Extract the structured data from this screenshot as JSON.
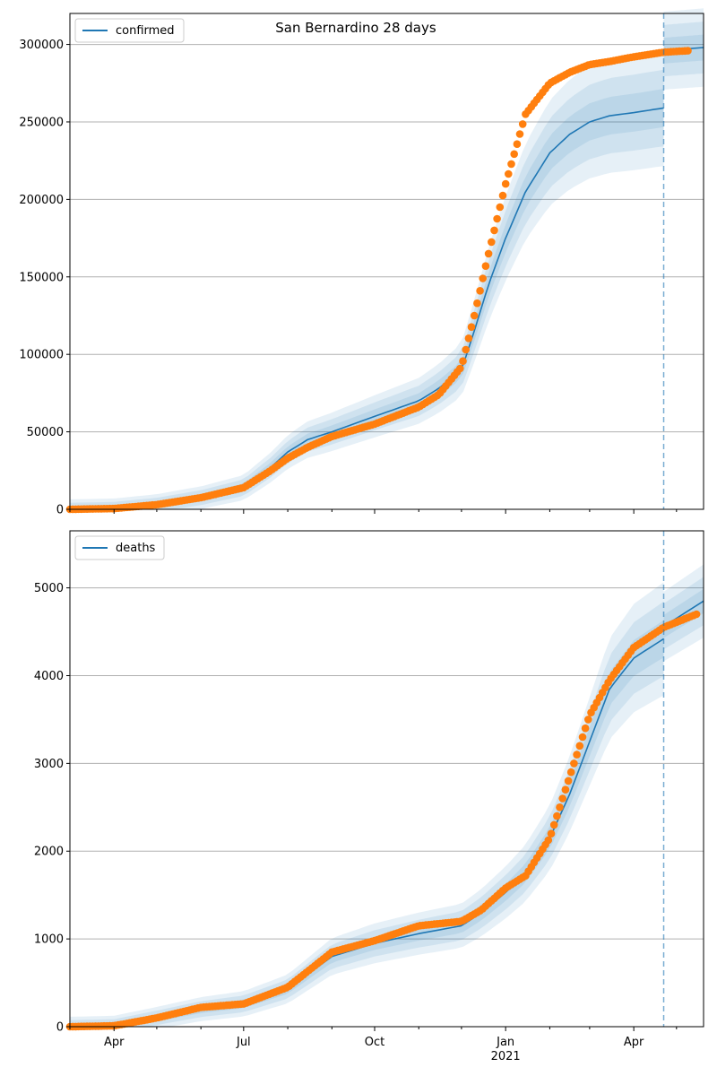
{
  "colors": {
    "model": "#1f77b4",
    "observed": "#ff7f0e",
    "band": "#1f77b4",
    "grid": "#b0b0b0",
    "forecast_line": "#1f77b4"
  },
  "chart_data": [
    {
      "type": "line",
      "title": "San Bernardino 28 days",
      "xlabel": "",
      "ylabel": "",
      "x_range": [
        "2020-03-01",
        "2021-05-20"
      ],
      "forecast_start": "2021-04-22",
      "ylim": [
        0,
        320000
      ],
      "yticks": [
        0,
        50000,
        100000,
        150000,
        200000,
        250000,
        300000
      ],
      "ytick_labels": [
        "0",
        "50000",
        "100000",
        "150000",
        "200000",
        "250000",
        "300000"
      ],
      "grid": "horizontal",
      "legend": {
        "position": "top-left",
        "entries": [
          "confirmed"
        ]
      },
      "series": [
        {
          "name": "confirmed",
          "kind": "model-median",
          "points": [
            [
              "2020-03-01",
              0
            ],
            [
              "2020-04-01",
              500
            ],
            [
              "2020-05-01",
              3000
            ],
            [
              "2020-06-01",
              7500
            ],
            [
              "2020-07-01",
              14000
            ],
            [
              "2020-07-20",
              27000
            ],
            [
              "2020-08-01",
              37000
            ],
            [
              "2020-08-15",
              45000
            ],
            [
              "2020-09-01",
              50000
            ],
            [
              "2020-10-01",
              60000
            ],
            [
              "2020-11-01",
              70000
            ],
            [
              "2020-11-15",
              78000
            ],
            [
              "2020-12-01",
              90000
            ],
            [
              "2020-12-10",
              115000
            ],
            [
              "2020-12-20",
              145000
            ],
            [
              "2021-01-01",
              175000
            ],
            [
              "2021-01-15",
              205000
            ],
            [
              "2021-02-01",
              230000
            ],
            [
              "2021-02-15",
              242000
            ],
            [
              "2021-03-01",
              250000
            ],
            [
              "2021-03-15",
              254000
            ],
            [
              "2021-04-01",
              256000
            ],
            [
              "2021-04-22",
              259000
            ]
          ]
        },
        {
          "name": "",
          "kind": "observed",
          "points": [
            [
              "2020-03-01",
              0
            ],
            [
              "2020-04-01",
              500
            ],
            [
              "2020-05-01",
              3000
            ],
            [
              "2020-06-01",
              7500
            ],
            [
              "2020-07-01",
              14000
            ],
            [
              "2020-07-20",
              25000
            ],
            [
              "2020-08-01",
              33000
            ],
            [
              "2020-08-15",
              40000
            ],
            [
              "2020-09-01",
              47000
            ],
            [
              "2020-10-01",
              55000
            ],
            [
              "2020-11-01",
              66000
            ],
            [
              "2020-11-15",
              74000
            ],
            [
              "2020-12-01",
              92000
            ],
            [
              "2020-12-10",
              125000
            ],
            [
              "2020-12-20",
              165000
            ],
            [
              "2021-01-01",
              210000
            ],
            [
              "2021-01-15",
              255000
            ],
            [
              "2021-02-01",
              275000
            ],
            [
              "2021-02-15",
              282000
            ],
            [
              "2021-03-01",
              287000
            ],
            [
              "2021-03-15",
              289000
            ],
            [
              "2021-04-01",
              292000
            ],
            [
              "2021-04-22",
              295000
            ],
            [
              "2021-05-10",
              296000
            ]
          ]
        },
        {
          "name": "",
          "kind": "forecast-median",
          "points": [
            [
              "2021-04-22",
              296000
            ],
            [
              "2021-05-20",
              298000
            ]
          ]
        }
      ]
    },
    {
      "type": "line",
      "title": "",
      "xlabel": "",
      "ylabel": "",
      "x_range": [
        "2020-03-01",
        "2021-05-20"
      ],
      "forecast_start": "2021-04-22",
      "ylim": [
        0,
        5650
      ],
      "yticks": [
        0,
        1000,
        2000,
        3000,
        4000,
        5000
      ],
      "ytick_labels": [
        "0",
        "1000",
        "2000",
        "3000",
        "4000",
        "5000"
      ],
      "xticks": [
        {
          "date": "2020-04-01",
          "label": "Apr",
          "sublabel": ""
        },
        {
          "date": "2020-07-01",
          "label": "Jul",
          "sublabel": ""
        },
        {
          "date": "2020-10-01",
          "label": "Oct",
          "sublabel": ""
        },
        {
          "date": "2021-01-01",
          "label": "Jan",
          "sublabel": "2021"
        },
        {
          "date": "2021-04-01",
          "label": "Apr",
          "sublabel": ""
        }
      ],
      "grid": "horizontal",
      "legend": {
        "position": "top-left",
        "entries": [
          "deaths"
        ]
      },
      "series": [
        {
          "name": "deaths",
          "kind": "model-median",
          "points": [
            [
              "2020-03-01",
              0
            ],
            [
              "2020-04-01",
              10
            ],
            [
              "2020-05-01",
              100
            ],
            [
              "2020-06-01",
              200
            ],
            [
              "2020-07-01",
              260
            ],
            [
              "2020-08-01",
              430
            ],
            [
              "2020-09-01",
              800
            ],
            [
              "2020-10-01",
              950
            ],
            [
              "2020-11-01",
              1060
            ],
            [
              "2020-12-01",
              1150
            ],
            [
              "2020-12-15",
              1300
            ],
            [
              "2021-01-01",
              1530
            ],
            [
              "2021-01-15",
              1750
            ],
            [
              "2021-02-01",
              2150
            ],
            [
              "2021-02-15",
              2650
            ],
            [
              "2021-03-01",
              3250
            ],
            [
              "2021-03-15",
              3850
            ],
            [
              "2021-04-01",
              4200
            ],
            [
              "2021-04-22",
              4420
            ]
          ]
        },
        {
          "name": "",
          "kind": "observed",
          "points": [
            [
              "2020-03-01",
              0
            ],
            [
              "2020-04-01",
              10
            ],
            [
              "2020-05-01",
              100
            ],
            [
              "2020-06-01",
              220
            ],
            [
              "2020-07-01",
              260
            ],
            [
              "2020-08-01",
              450
            ],
            [
              "2020-09-01",
              850
            ],
            [
              "2020-10-01",
              980
            ],
            [
              "2020-11-01",
              1150
            ],
            [
              "2020-12-01",
              1200
            ],
            [
              "2020-12-15",
              1330
            ],
            [
              "2021-01-01",
              1580
            ],
            [
              "2021-01-15",
              1720
            ],
            [
              "2021-02-01",
              2150
            ],
            [
              "2021-02-15",
              2850
            ],
            [
              "2021-03-01",
              3550
            ],
            [
              "2021-03-15",
              3950
            ],
            [
              "2021-04-01",
              4320
            ],
            [
              "2021-04-22",
              4550
            ],
            [
              "2021-05-15",
              4700
            ]
          ]
        },
        {
          "name": "",
          "kind": "forecast-median",
          "points": [
            [
              "2021-04-22",
              4560
            ],
            [
              "2021-05-20",
              4850
            ]
          ]
        }
      ]
    }
  ]
}
